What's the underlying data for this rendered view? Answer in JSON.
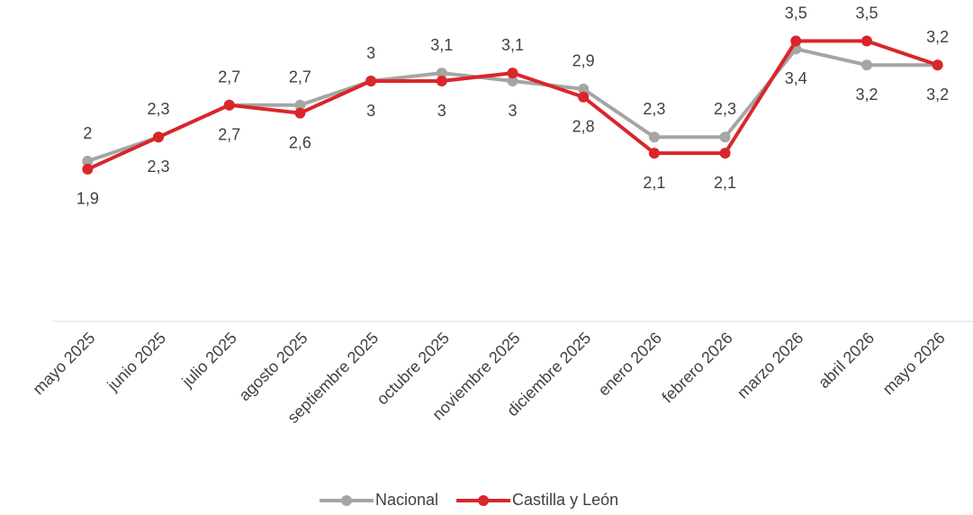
{
  "chart_data": {
    "type": "line",
    "categories": [
      "mayo 2025",
      "junio 2025",
      "julio 2025",
      "agosto 2025",
      "septiembre 2025",
      "octubre 2025",
      "noviembre 2025",
      "diciembre 2025",
      "enero 2026",
      "febrero 2026",
      "marzo 2026",
      "abril 2026",
      "mayo 2026"
    ],
    "series": [
      {
        "name": "Nacional",
        "color": "#a5a5a5",
        "values": [
          2,
          2.3,
          2.7,
          2.7,
          3,
          3.1,
          3,
          2.9,
          2.3,
          2.3,
          3.4,
          3.2,
          3.2
        ],
        "value_labels": [
          "2",
          "2,3",
          "2,7",
          "2,7",
          "3",
          "3,1",
          "3",
          "2,9",
          "2,3",
          "2,3",
          "3,4",
          "3,2",
          "3,2"
        ]
      },
      {
        "name": "Castilla y León",
        "color": "#d9262a",
        "values": [
          1.9,
          2.3,
          2.7,
          2.6,
          3,
          3,
          3.1,
          2.8,
          2.1,
          2.1,
          3.5,
          3.5,
          3.2
        ],
        "value_labels": [
          "1,9",
          "2,3",
          "2,7",
          "2,6",
          "3",
          "3",
          "3,1",
          "2,8",
          "2,1",
          "2,1",
          "3,5",
          "3,5",
          "3,2"
        ]
      }
    ],
    "ylim": [
      0,
      4
    ],
    "legend": "bottom"
  }
}
